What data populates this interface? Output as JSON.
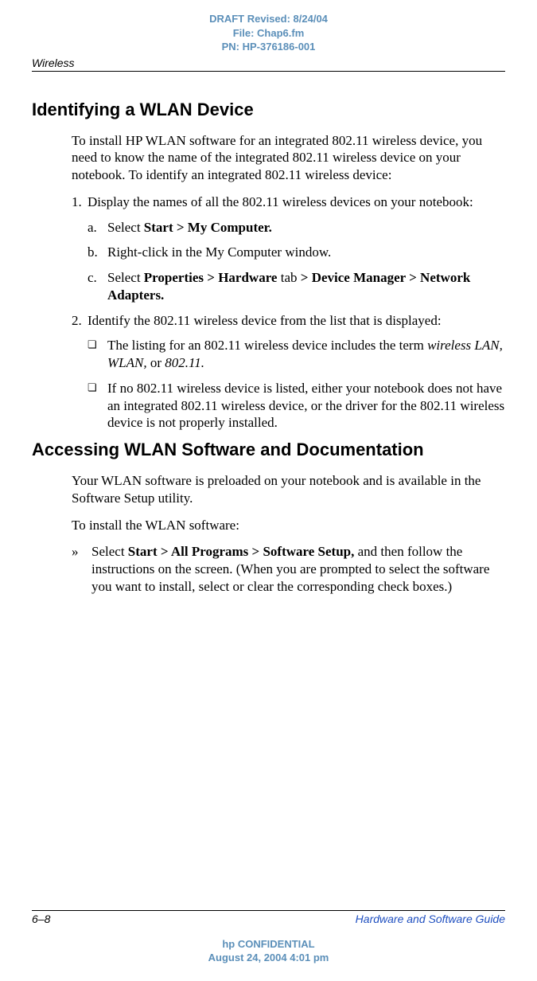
{
  "header": {
    "draft_line1": "DRAFT Revised: 8/24/04",
    "draft_line2": "File: Chap6.fm",
    "draft_line3": "PN: HP-376186-001",
    "running_head": "Wireless"
  },
  "section1": {
    "title": "Identifying a WLAN Device",
    "intro": "To install HP WLAN software for an integrated 802.11 wireless device, you need to know the name of the integrated 802.11 wireless device on your notebook. To identify an integrated 802.11 wireless device:",
    "step1_num": "1.",
    "step1_text": "Display the names of all the 802.11 wireless devices on your notebook:",
    "sub_a_marker": "a.",
    "sub_a_prefix": "Select ",
    "sub_a_bold": "Start > My Computer.",
    "sub_b_marker": "b.",
    "sub_b_text": "Right-click in the My Computer window.",
    "sub_c_marker": "c.",
    "sub_c_prefix": "Select ",
    "sub_c_bold1": "Properties > Hardware",
    "sub_c_mid": " tab ",
    "sub_c_bold2": "> Device Manager > Network Adapters.",
    "step2_num": "2.",
    "step2_text": "Identify the 802.11 wireless device from the list that is displayed:",
    "bullet1_marker": "❏",
    "bullet1_prefix": "The listing for an 802.11 wireless device includes the term ",
    "bullet1_italic": "wireless LAN, WLAN,",
    "bullet1_mid": " or ",
    "bullet1_italic2": "802.11.",
    "bullet2_marker": "❏",
    "bullet2_text": "If no 802.11 wireless device is listed, either your notebook does not have an integrated 802.11 wireless device, or the driver for the 802.11 wireless device is not properly installed."
  },
  "section2": {
    "title": "Accessing WLAN Software and Documentation",
    "p1": "Your WLAN software is preloaded on your notebook and is available in the Software Setup utility.",
    "p2": "To install the WLAN software:",
    "arrow_marker": "»",
    "arrow_prefix": "Select ",
    "arrow_bold": "Start > All Programs > Software Setup,",
    "arrow_suffix": " and then follow the instructions on the screen. (When you are prompted to select the software you want to install, select or clear the corresponding check boxes.)"
  },
  "footer": {
    "page_num": "6–8",
    "guide_title": "Hardware and Software Guide",
    "conf_line1": "hp CONFIDENTIAL",
    "conf_line2": "August 24, 2004 4:01 pm"
  }
}
